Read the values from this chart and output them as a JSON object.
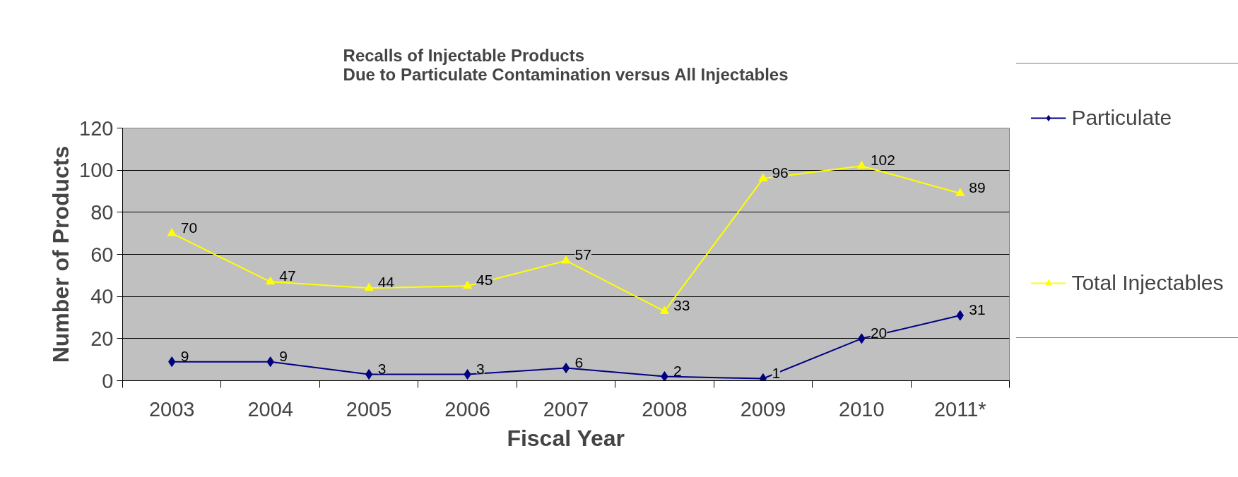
{
  "chart_data": {
    "type": "line",
    "title": "Recalls of Injectable Products\nDue to Particulate Contamination versus All Injectables",
    "xlabel": "Fiscal Year",
    "ylabel": "Number of Products",
    "categories": [
      "2003",
      "2004",
      "2005",
      "2006",
      "2007",
      "2008",
      "2009",
      "2010",
      "2011*"
    ],
    "series": [
      {
        "name": "Particulate",
        "color": "#000080",
        "marker": "diamond",
        "values": [
          9,
          9,
          3,
          3,
          6,
          2,
          1,
          20,
          31
        ]
      },
      {
        "name": "Total Injectables",
        "color": "#ffff00",
        "marker": "triangle",
        "values": [
          70,
          47,
          44,
          45,
          57,
          33,
          96,
          102,
          89
        ]
      }
    ],
    "ylim": [
      0,
      120
    ],
    "yticks": [
      0,
      20,
      40,
      60,
      80,
      100,
      120
    ],
    "grid": "y",
    "legend": "right",
    "data_labels": true
  }
}
